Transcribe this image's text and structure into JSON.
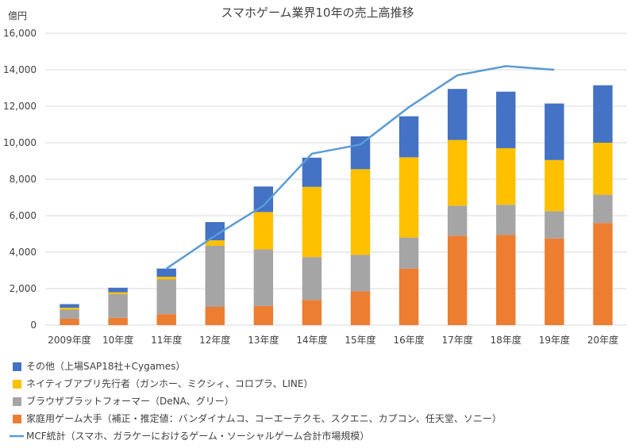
{
  "chart_data": {
    "type": "bar",
    "title": "スマホゲーム業界10年の売上高推移",
    "unit_label": "億円",
    "ylim": [
      0,
      16000
    ],
    "y_ticks": [
      "0",
      "2,000",
      "4,000",
      "6,000",
      "8,000",
      "10,000",
      "12,000",
      "14,000",
      "16,000"
    ],
    "y_tick_values": [
      0,
      2000,
      4000,
      6000,
      8000,
      10000,
      12000,
      14000,
      16000
    ],
    "grid": true,
    "legend_position": "bottom",
    "categories": [
      "2009年度",
      "10年度",
      "11年度",
      "12年度",
      "13年度",
      "14年度",
      "15年度",
      "16年度",
      "17年度",
      "18年度",
      "19年度",
      "20年度"
    ],
    "series": [
      {
        "name": "家庭用ゲーム大手（補正・推定値：バンダイナムコ、コーエーテクモ、スクエニ、カプコン、任天堂、ソニー）",
        "kind": "bar",
        "color": "#ed7d31",
        "values": [
          350,
          400,
          600,
          1000,
          1050,
          1380,
          1850,
          3100,
          4900,
          4950,
          4750,
          5600
        ]
      },
      {
        "name": "ブラウザプラットフォーマー（DeNA、グリー）",
        "kind": "bar",
        "color": "#a5a5a5",
        "values": [
          500,
          1300,
          1900,
          3350,
          3100,
          2350,
          2000,
          1700,
          1650,
          1650,
          1500,
          1550
        ]
      },
      {
        "name": "ネイティブアプリ先行者（ガンホー、ミクシィ、コロプラ、LINE）",
        "kind": "bar",
        "color": "#ffc000",
        "values": [
          100,
          100,
          150,
          300,
          2050,
          3850,
          4700,
          4400,
          3600,
          3100,
          2800,
          2850
        ]
      },
      {
        "name": "その他（上場SAP18社+Cygames）",
        "kind": "bar",
        "color": "#4472c4",
        "values": [
          200,
          250,
          450,
          1000,
          1400,
          1600,
          1800,
          2250,
          2800,
          3100,
          3100,
          3150
        ]
      },
      {
        "name": "MCF統計（スマホ、ガラケーにおけるゲーム・ソーシャルゲーム合計市場規模）",
        "kind": "line",
        "color": "#5b9bd5",
        "values": [
          null,
          null,
          3100,
          4900,
          6550,
          9400,
          9900,
          11950,
          13700,
          14200,
          14000,
          null
        ]
      }
    ],
    "legend_order": [
      3,
      2,
      1,
      0,
      4
    ]
  }
}
